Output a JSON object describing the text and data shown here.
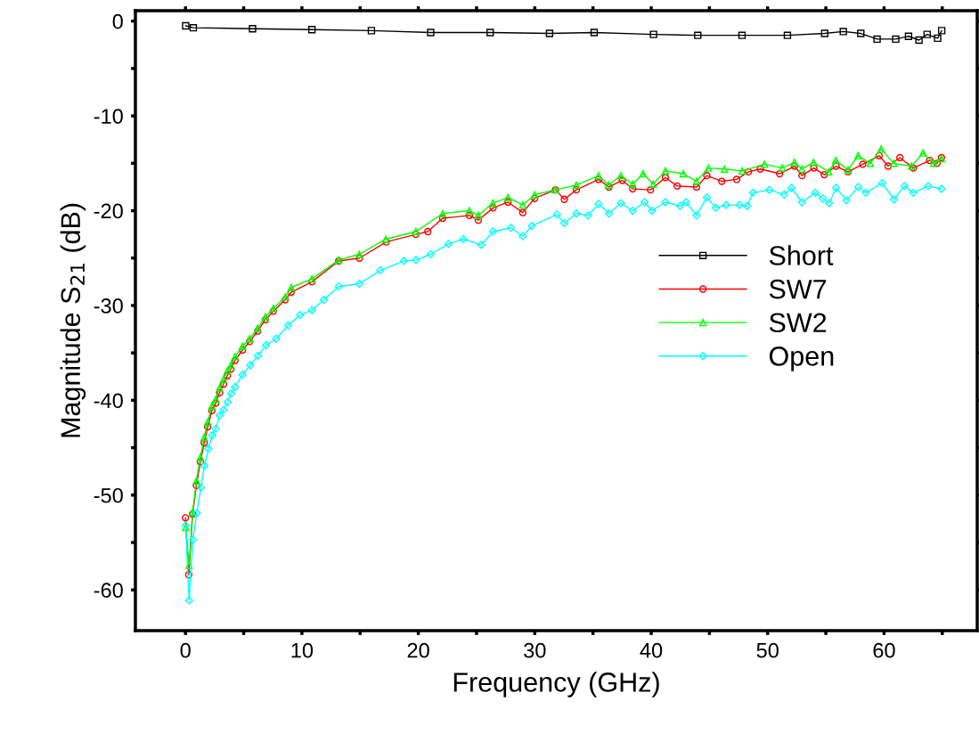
{
  "chart_data": {
    "type": "line",
    "xlabel": "Frequency (GHz)",
    "ylabel": "Magnitude S$_{21}$ (dB)",
    "xlim": [
      -4.3,
      68
    ],
    "ylim": [
      -64.3,
      1.1
    ],
    "xticks": [
      0,
      {
        "value": 5,
        "label": null
      },
      10,
      {
        "value": 15,
        "label": null
      },
      20,
      {
        "value": 25,
        "label": null
      },
      30,
      {
        "value": 35,
        "label": null
      },
      40,
      {
        "value": 45,
        "label": null
      },
      50,
      {
        "value": 55,
        "label": null
      },
      60,
      {
        "value": 65,
        "label": null
      }
    ],
    "yticks": [
      {
        "value": 0,
        "label": "0"
      },
      {
        "value": -5,
        "label": null
      },
      {
        "value": -10,
        "label": "-10"
      },
      {
        "value": -15,
        "label": null
      },
      {
        "value": -20,
        "label": "-20"
      },
      {
        "value": -25,
        "label": null
      },
      {
        "value": -30,
        "label": "-30"
      },
      {
        "value": -35,
        "label": null
      },
      {
        "value": -40,
        "label": "-40"
      },
      {
        "value": -45,
        "label": null
      },
      {
        "value": -50,
        "label": "-50"
      },
      {
        "value": -55,
        "label": null
      },
      {
        "value": -60,
        "label": "-60"
      }
    ],
    "grid": false,
    "legend": "right",
    "line_style": "solid",
    "series": [
      {
        "name": "Short",
        "color": "#000000",
        "marker": "square",
        "x": [
          0.02,
          0.67,
          5.76,
          10.86,
          15.97,
          21.06,
          26.17,
          31.27,
          35.1,
          40.2,
          44.0,
          47.8,
          51.7,
          54.9,
          56.5,
          58.0,
          59.4,
          61.0,
          62.1,
          63.0,
          63.7,
          64.6,
          64.95
        ],
        "values": [
          -0.5,
          -0.7,
          -0.8,
          -0.9,
          -1.0,
          -1.2,
          -1.2,
          -1.3,
          -1.2,
          -1.4,
          -1.5,
          -1.5,
          -1.5,
          -1.3,
          -1.1,
          -1.3,
          -1.9,
          -1.9,
          -1.6,
          -2.0,
          -1.4,
          -1.8,
          -1.0
        ]
      },
      {
        "name": "SW7",
        "color": "#ff0000",
        "marker": "circle",
        "x": [
          0.0,
          0.28,
          0.61,
          0.94,
          1.28,
          1.61,
          1.91,
          2.27,
          2.6,
          2.93,
          3.27,
          3.6,
          3.9,
          4.26,
          4.9,
          5.51,
          6.2,
          6.86,
          7.55,
          8.57,
          9.08,
          10.86,
          13.16,
          14.94,
          17.24,
          19.79,
          20.81,
          22.09,
          24.38,
          25.15,
          26.42,
          27.7,
          28.97,
          29.99,
          31.78,
          32.54,
          33.57,
          35.48,
          36.37,
          37.52,
          38.41,
          39.94,
          41.22,
          42.23,
          43.89,
          44.78,
          46.06,
          47.34,
          48.35,
          49.37,
          51.03,
          52.31,
          52.95,
          53.97,
          54.86,
          55.88,
          56.9,
          58.17,
          59.58,
          60.35,
          61.36,
          62.51,
          63.91,
          64.55,
          64.93
        ],
        "values": [
          -52.4,
          -58.4,
          -52.0,
          -49.0,
          -46.5,
          -44.5,
          -42.8,
          -41.1,
          -40.3,
          -39.2,
          -38.3,
          -37.4,
          -36.7,
          -35.8,
          -34.7,
          -33.8,
          -32.7,
          -31.5,
          -30.6,
          -29.4,
          -28.6,
          -27.5,
          -25.3,
          -25.0,
          -23.3,
          -22.5,
          -22.2,
          -20.8,
          -20.5,
          -21.0,
          -19.7,
          -19.1,
          -20.2,
          -18.7,
          -17.8,
          -18.8,
          -17.8,
          -16.7,
          -17.5,
          -16.8,
          -17.7,
          -17.8,
          -16.5,
          -17.4,
          -17.5,
          -16.3,
          -16.9,
          -16.7,
          -15.9,
          -15.6,
          -16.1,
          -15.3,
          -16.3,
          -15.5,
          -16.2,
          -15.3,
          -15.9,
          -15.1,
          -14.2,
          -15.3,
          -14.4,
          -15.5,
          -14.7,
          -15.0,
          -14.4
        ]
      },
      {
        "name": "SW2",
        "color": "#00ff00",
        "marker": "triangle",
        "x": [
          0.02,
          0.31,
          0.61,
          0.94,
          1.28,
          1.61,
          1.91,
          2.27,
          2.6,
          2.93,
          3.27,
          3.6,
          3.9,
          4.26,
          4.9,
          5.51,
          6.2,
          6.86,
          7.55,
          8.57,
          9.08,
          10.86,
          13.16,
          14.92,
          17.21,
          19.79,
          22.09,
          24.38,
          25.15,
          26.4,
          27.7,
          28.97,
          29.99,
          31.75,
          33.57,
          35.48,
          36.34,
          37.39,
          38.41,
          39.3,
          40.17,
          41.22,
          42.75,
          43.89,
          44.91,
          46.29,
          47.82,
          49.73,
          51.26,
          52.31,
          52.95,
          53.94,
          55.24,
          55.85,
          56.9,
          57.77,
          58.81,
          59.75,
          60.83,
          62.36,
          63.35,
          64.27,
          64.93
        ],
        "values": [
          -53.4,
          -57.4,
          -51.8,
          -48.5,
          -46.0,
          -43.9,
          -42.3,
          -40.6,
          -39.9,
          -38.7,
          -37.8,
          -36.9,
          -36.3,
          -35.4,
          -34.3,
          -33.5,
          -32.4,
          -31.2,
          -30.3,
          -29.1,
          -28.1,
          -27.2,
          -25.2,
          -24.6,
          -23.0,
          -22.2,
          -20.3,
          -20.0,
          -20.5,
          -19.2,
          -18.6,
          -19.4,
          -18.3,
          -17.8,
          -17.3,
          -16.3,
          -17.3,
          -16.3,
          -17.2,
          -16.1,
          -17.2,
          -15.8,
          -16.1,
          -16.9,
          -15.5,
          -15.6,
          -15.8,
          -15.1,
          -15.5,
          -14.9,
          -15.6,
          -14.9,
          -15.9,
          -14.7,
          -15.7,
          -14.2,
          -15.0,
          -13.5,
          -15.0,
          -15.3,
          -13.9,
          -15.0,
          -14.5
        ]
      },
      {
        "name": "Open",
        "color": "#00ffff",
        "marker": "diamond",
        "x": [
          0.02,
          0.31,
          0.64,
          0.97,
          1.33,
          1.63,
          1.97,
          2.3,
          2.6,
          2.93,
          3.27,
          3.62,
          3.92,
          4.26,
          4.9,
          5.56,
          6.22,
          6.91,
          7.8,
          8.82,
          9.85,
          10.86,
          11.88,
          13.16,
          14.94,
          16.73,
          18.77,
          19.79,
          21.06,
          22.59,
          23.87,
          25.4,
          26.42,
          27.95,
          28.97,
          29.74,
          31.9,
          32.54,
          33.57,
          34.58,
          35.48,
          36.37,
          37.39,
          38.41,
          39.43,
          40.07,
          41.22,
          42.49,
          43.0,
          43.89,
          44.78,
          45.55,
          46.44,
          47.59,
          48.23,
          48.74,
          50.14,
          51.42,
          52.05,
          52.95,
          54.09,
          54.73,
          55.29,
          55.88,
          56.77,
          57.79,
          58.43,
          59.83,
          60.85,
          61.75,
          62.51,
          63.79,
          64.93
        ],
        "values": [
          -53.2,
          -61.1,
          -54.7,
          -51.9,
          -49.2,
          -46.9,
          -45.1,
          -43.7,
          -43.0,
          -41.6,
          -41.0,
          -40.2,
          -39.3,
          -38.6,
          -37.3,
          -36.3,
          -35.3,
          -34.2,
          -33.5,
          -32.1,
          -31.0,
          -30.5,
          -29.4,
          -28.0,
          -27.7,
          -26.3,
          -25.3,
          -25.2,
          -24.6,
          -23.5,
          -23.0,
          -23.6,
          -22.2,
          -21.8,
          -22.7,
          -21.6,
          -20.4,
          -21.3,
          -20.3,
          -20.5,
          -19.3,
          -20.3,
          -19.2,
          -20.0,
          -19.1,
          -20.0,
          -19.1,
          -19.5,
          -19.1,
          -20.5,
          -18.6,
          -19.7,
          -19.4,
          -19.4,
          -19.5,
          -18.1,
          -17.8,
          -18.3,
          -17.6,
          -19.1,
          -18.1,
          -18.7,
          -19.2,
          -17.6,
          -18.9,
          -17.5,
          -18.1,
          -17.1,
          -18.8,
          -17.4,
          -18.1,
          -17.4,
          -17.7
        ]
      }
    ]
  }
}
